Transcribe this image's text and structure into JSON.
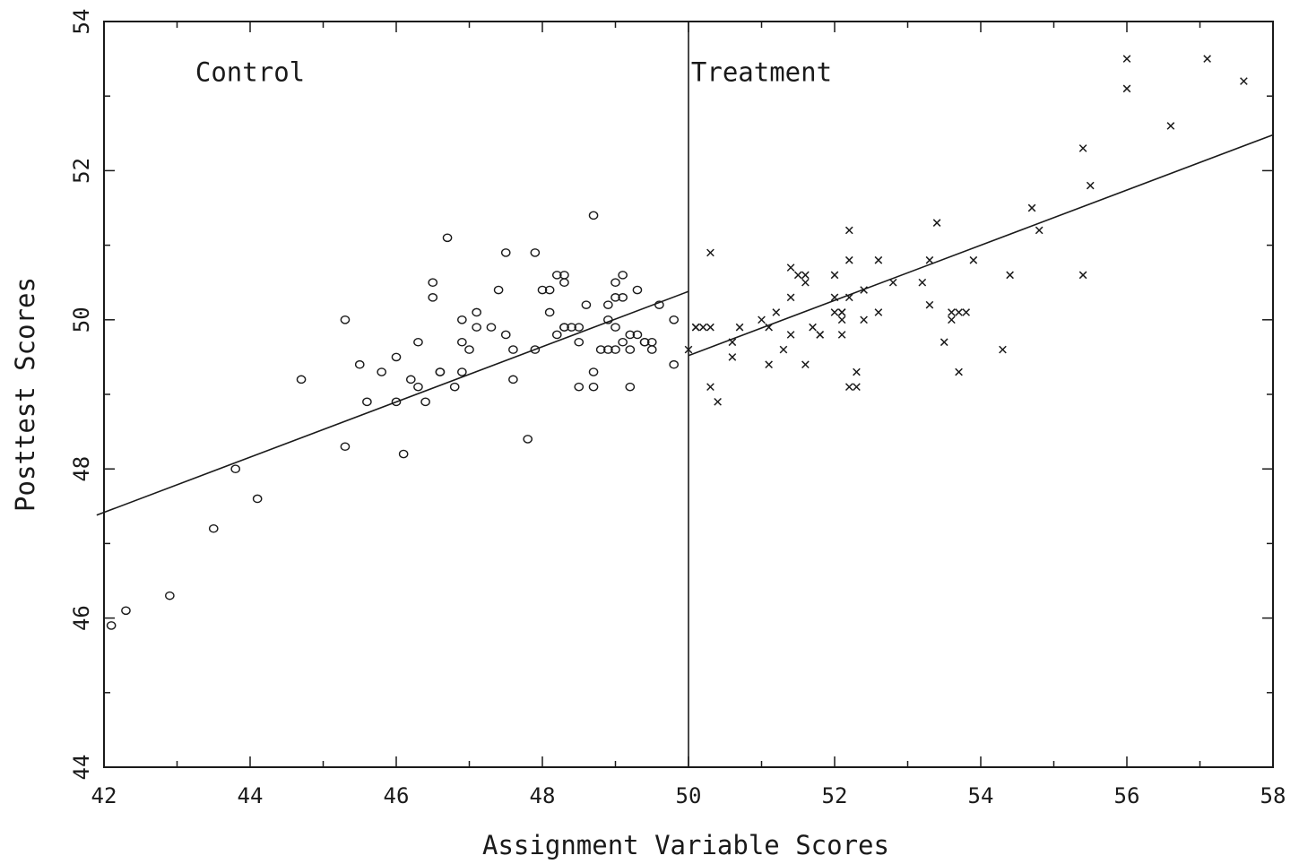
{
  "chart_data": {
    "type": "scatter",
    "title": "",
    "xlabel": "Assignment Variable Scores",
    "ylabel": "Posttest Scores",
    "xlim": [
      42,
      58
    ],
    "ylim": [
      44,
      54
    ],
    "x_ticks": [
      42,
      44,
      46,
      48,
      50,
      52,
      54,
      56,
      58
    ],
    "y_ticks": [
      44,
      46,
      48,
      50,
      52,
      54
    ],
    "x_tick_labels": [
      "42",
      "44",
      "46",
      "48",
      "50",
      "52",
      "54",
      "56",
      "58"
    ],
    "y_tick_labels": [
      "44",
      "46",
      "48",
      "50",
      "52",
      "54"
    ],
    "grid": false,
    "cutoff": 50,
    "annotations": [
      {
        "text": "Control",
        "x": 44.0,
        "y": 53.2
      },
      {
        "text": "Treatment",
        "x": 51.0,
        "y": 53.2
      }
    ],
    "series": [
      {
        "marker": "circle",
        "regression": {
          "x": [
            41.9,
            50.0
          ],
          "y": [
            47.38,
            50.38
          ]
        },
        "points": [
          [
            42.1,
            45.9
          ],
          [
            42.3,
            46.1
          ],
          [
            42.9,
            46.3
          ],
          [
            43.5,
            47.2
          ],
          [
            43.8,
            48.0
          ],
          [
            44.1,
            47.6
          ],
          [
            44.7,
            49.2
          ],
          [
            45.3,
            50.0
          ],
          [
            45.3,
            48.3
          ],
          [
            45.5,
            49.4
          ],
          [
            45.6,
            48.9
          ],
          [
            45.8,
            49.3
          ],
          [
            46.0,
            48.9
          ],
          [
            46.0,
            49.5
          ],
          [
            46.1,
            48.2
          ],
          [
            46.2,
            49.2
          ],
          [
            46.3,
            49.1
          ],
          [
            46.3,
            49.7
          ],
          [
            46.4,
            48.9
          ],
          [
            46.5,
            50.3
          ],
          [
            46.5,
            50.5
          ],
          [
            46.6,
            49.3
          ],
          [
            46.6,
            49.3
          ],
          [
            46.7,
            51.1
          ],
          [
            46.8,
            49.1
          ],
          [
            46.9,
            50.0
          ],
          [
            46.9,
            49.7
          ],
          [
            46.9,
            49.3
          ],
          [
            47.0,
            49.6
          ],
          [
            47.1,
            50.1
          ],
          [
            47.1,
            49.9
          ],
          [
            47.3,
            49.9
          ],
          [
            47.4,
            50.4
          ],
          [
            47.5,
            49.8
          ],
          [
            47.5,
            50.9
          ],
          [
            47.6,
            49.6
          ],
          [
            47.6,
            49.2
          ],
          [
            47.8,
            48.4
          ],
          [
            47.9,
            49.6
          ],
          [
            47.9,
            50.9
          ],
          [
            48.0,
            50.4
          ],
          [
            48.1,
            50.4
          ],
          [
            48.1,
            50.1
          ],
          [
            48.2,
            49.8
          ],
          [
            48.2,
            50.6
          ],
          [
            48.3,
            49.9
          ],
          [
            48.3,
            49.9
          ],
          [
            48.3,
            50.6
          ],
          [
            48.3,
            50.5
          ],
          [
            48.4,
            49.9
          ],
          [
            48.5,
            49.9
          ],
          [
            48.5,
            49.7
          ],
          [
            48.5,
            49.1
          ],
          [
            48.6,
            50.2
          ],
          [
            48.7,
            51.4
          ],
          [
            48.7,
            49.3
          ],
          [
            48.7,
            49.1
          ],
          [
            48.8,
            49.6
          ],
          [
            48.9,
            50.0
          ],
          [
            48.9,
            50.2
          ],
          [
            48.9,
            49.6
          ],
          [
            49.0,
            50.3
          ],
          [
            49.0,
            50.5
          ],
          [
            49.0,
            49.6
          ],
          [
            49.0,
            49.9
          ],
          [
            49.1,
            50.6
          ],
          [
            49.1,
            49.7
          ],
          [
            49.1,
            50.3
          ],
          [
            49.2,
            49.6
          ],
          [
            49.2,
            49.8
          ],
          [
            49.2,
            49.1
          ],
          [
            49.3,
            49.8
          ],
          [
            49.3,
            50.4
          ],
          [
            49.4,
            49.7
          ],
          [
            49.4,
            49.7
          ],
          [
            49.5,
            49.7
          ],
          [
            49.5,
            49.6
          ],
          [
            49.6,
            50.2
          ],
          [
            49.8,
            49.4
          ],
          [
            49.8,
            50.0
          ]
        ]
      },
      {
        "marker": "cross",
        "regression": {
          "x": [
            50.0,
            58.0
          ],
          "y": [
            49.52,
            52.48
          ]
        },
        "points": [
          [
            50.0,
            49.6
          ],
          [
            50.1,
            49.9
          ],
          [
            50.1,
            49.9
          ],
          [
            50.2,
            49.9
          ],
          [
            50.3,
            50.9
          ],
          [
            50.3,
            49.1
          ],
          [
            50.3,
            49.9
          ],
          [
            50.4,
            48.9
          ],
          [
            50.6,
            49.7
          ],
          [
            50.6,
            49.5
          ],
          [
            50.7,
            49.9
          ],
          [
            51.0,
            50.0
          ],
          [
            51.1,
            49.9
          ],
          [
            51.1,
            49.4
          ],
          [
            51.2,
            50.1
          ],
          [
            51.3,
            49.6
          ],
          [
            51.4,
            50.3
          ],
          [
            51.4,
            49.8
          ],
          [
            51.4,
            50.7
          ],
          [
            51.5,
            50.6
          ],
          [
            51.6,
            50.6
          ],
          [
            51.6,
            49.4
          ],
          [
            51.6,
            50.5
          ],
          [
            51.7,
            49.9
          ],
          [
            51.8,
            49.8
          ],
          [
            51.8,
            49.8
          ],
          [
            52.0,
            50.1
          ],
          [
            52.0,
            50.6
          ],
          [
            52.0,
            50.3
          ],
          [
            52.1,
            50.0
          ],
          [
            52.1,
            50.1
          ],
          [
            52.1,
            49.8
          ],
          [
            52.1,
            50.1
          ],
          [
            52.2,
            49.1
          ],
          [
            52.2,
            50.3
          ],
          [
            52.2,
            50.8
          ],
          [
            52.2,
            51.2
          ],
          [
            52.3,
            49.3
          ],
          [
            52.3,
            49.1
          ],
          [
            52.4,
            50.0
          ],
          [
            52.4,
            50.4
          ],
          [
            52.6,
            50.1
          ],
          [
            52.6,
            50.8
          ],
          [
            52.8,
            50.5
          ],
          [
            53.2,
            50.5
          ],
          [
            53.3,
            50.2
          ],
          [
            53.3,
            50.8
          ],
          [
            53.4,
            51.3
          ],
          [
            53.5,
            49.7
          ],
          [
            53.6,
            50.0
          ],
          [
            53.6,
            50.1
          ],
          [
            53.7,
            50.1
          ],
          [
            53.7,
            49.3
          ],
          [
            53.8,
            50.1
          ],
          [
            53.9,
            50.8
          ],
          [
            54.3,
            49.6
          ],
          [
            54.4,
            50.6
          ],
          [
            54.7,
            51.5
          ],
          [
            54.8,
            51.2
          ],
          [
            55.4,
            52.3
          ],
          [
            55.4,
            50.6
          ],
          [
            55.5,
            51.8
          ],
          [
            56.0,
            53.5
          ],
          [
            56.0,
            53.1
          ],
          [
            56.6,
            52.6
          ],
          [
            57.1,
            53.5
          ],
          [
            57.6,
            53.2
          ]
        ]
      }
    ]
  }
}
